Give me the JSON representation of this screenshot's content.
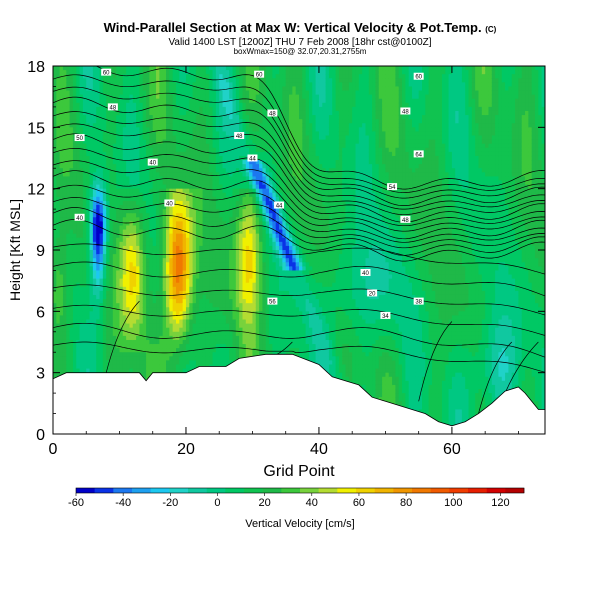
{
  "title": {
    "main": "Wind-Parallel Section at Max W: Vertical Velocity & Pot.Temp.",
    "main_unit": "(C)",
    "valid_line": "Valid 1400 LST [1200Z] THU 7 Feb 2008 [18hr cst@0100Z]",
    "box_line": "boxWmax=150@ 32.07,20.31,2755m"
  },
  "chart_data": {
    "type": "heatmap",
    "title": "Wind-Parallel Section at Max W: Vertical Velocity & Pot.Temp.",
    "xlabel": "Grid Point",
    "ylabel": "Height [Kft MSL]",
    "xlim": [
      0,
      74
    ],
    "ylim": [
      0,
      18
    ],
    "x_ticks": [
      "0",
      "20",
      "40",
      "60"
    ],
    "y_ticks": [
      "0",
      "3",
      "6",
      "9",
      "12",
      "15",
      "18"
    ],
    "terrain_kft": [
      [
        0,
        2.7
      ],
      [
        2,
        3.0
      ],
      [
        6,
        3.0
      ],
      [
        13,
        3.0
      ],
      [
        14,
        2.6
      ],
      [
        15,
        3.0
      ],
      [
        20,
        3.0
      ],
      [
        22,
        3.3
      ],
      [
        26,
        3.3
      ],
      [
        28,
        3.7
      ],
      [
        32,
        3.9
      ],
      [
        36,
        3.9
      ],
      [
        40,
        3.4
      ],
      [
        42,
        2.8
      ],
      [
        46,
        2.4
      ],
      [
        48,
        1.8
      ],
      [
        50,
        1.6
      ],
      [
        52,
        1.4
      ],
      [
        54,
        1.2
      ],
      [
        56,
        1.0
      ],
      [
        58,
        0.6
      ],
      [
        60,
        0.4
      ],
      [
        62,
        0.6
      ],
      [
        64,
        1.0
      ],
      [
        66,
        1.5
      ],
      [
        68,
        2.1
      ],
      [
        70,
        2.3
      ],
      [
        71,
        2.0
      ],
      [
        72,
        1.6
      ],
      [
        73,
        1.2
      ],
      [
        74,
        1.2
      ]
    ],
    "color_bar": {
      "label": "Vertical Velocity [cm/s]",
      "tick_labels": [
        "-60",
        "-40",
        "-20",
        "0",
        "20",
        "40",
        "60",
        "80",
        "100",
        "120"
      ],
      "range": [
        -60,
        130
      ],
      "colors": [
        "#0000c8",
        "#0a32e6",
        "#1c78f0",
        "#1ea0f0",
        "#1cc8f0",
        "#20d2c8",
        "#10c8a0",
        "#00c882",
        "#00c864",
        "#10c350",
        "#1fb948",
        "#3cc83c",
        "#78d23c",
        "#b4dc32",
        "#f0f000",
        "#f0d200",
        "#f0b400",
        "#f09600",
        "#f07800",
        "#f05a00",
        "#f03c00",
        "#e61e00",
        "#d20000",
        "#b40000"
      ]
    },
    "w_features": [
      {
        "x": 6.8,
        "z": 10.3,
        "w": -55
      },
      {
        "x": 35.0,
        "z": 10.5,
        "w": -35
      },
      {
        "x": 18.8,
        "z": 8.0,
        "w": 125
      },
      {
        "x": 12.0,
        "z": 7.8,
        "w": 75
      },
      {
        "x": 29.5,
        "z": 8.8,
        "w": 70
      },
      {
        "x": 1.0,
        "z": 7.0,
        "w": 45
      }
    ],
    "theta_contour_labels": [
      {
        "text": "60",
        "x": 8,
        "z": 17.7
      },
      {
        "text": "48",
        "x": 9,
        "z": 16.0
      },
      {
        "text": "50",
        "x": 4,
        "z": 14.5
      },
      {
        "text": "40",
        "x": 15,
        "z": 13.3
      },
      {
        "text": "40",
        "x": 4,
        "z": 10.6
      },
      {
        "text": "40",
        "x": 17.5,
        "z": 11.3
      },
      {
        "text": "60",
        "x": 31,
        "z": 17.6
      },
      {
        "text": "48",
        "x": 33,
        "z": 15.7
      },
      {
        "text": "48",
        "x": 28,
        "z": 14.6
      },
      {
        "text": "44",
        "x": 30,
        "z": 13.5
      },
      {
        "text": "44",
        "x": 34,
        "z": 11.2
      },
      {
        "text": "60",
        "x": 55,
        "z": 17.5
      },
      {
        "text": "48",
        "x": 53,
        "z": 15.8
      },
      {
        "text": "64",
        "x": 55,
        "z": 13.7
      },
      {
        "text": "54",
        "x": 51,
        "z": 12.1
      },
      {
        "text": "48",
        "x": 53,
        "z": 10.5
      },
      {
        "text": "40",
        "x": 47,
        "z": 7.9
      },
      {
        "text": "20",
        "x": 48,
        "z": 6.9
      },
      {
        "text": "38",
        "x": 55,
        "z": 6.5
      },
      {
        "text": "34",
        "x": 50,
        "z": 5.8
      },
      {
        "text": "56",
        "x": 33,
        "z": 6.5
      }
    ]
  }
}
